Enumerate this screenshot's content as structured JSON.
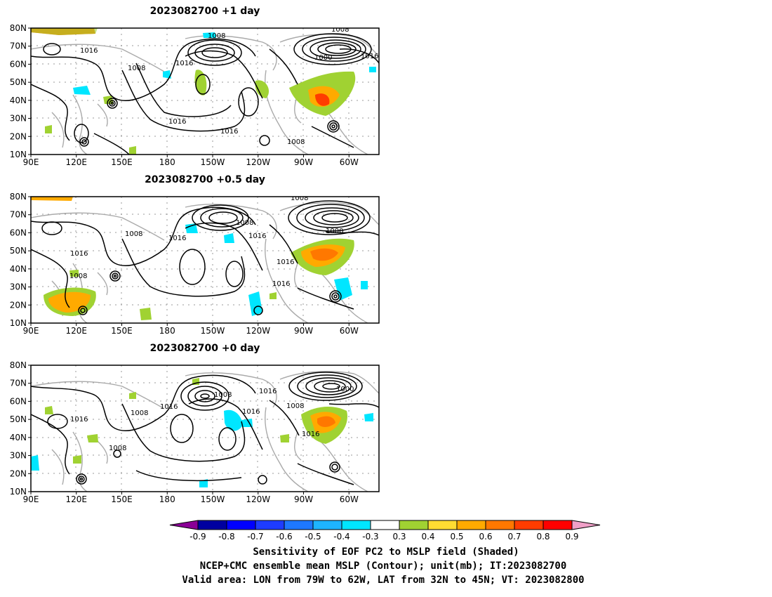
{
  "panels": [
    {
      "title": "2023082700  +1 day",
      "contour_labels": [
        "1008",
        "1016",
        "1008",
        "1016",
        "1016",
        "1016",
        "1000",
        "1008",
        "1016",
        "1008"
      ]
    },
    {
      "title": "2023082700  +0.5 day",
      "contour_labels": [
        "1008",
        "1008",
        "1016",
        "1016",
        "1008",
        "1016",
        "1000",
        "1016",
        "1016",
        "1008"
      ]
    },
    {
      "title": "2023082700  +0 day",
      "contour_labels": [
        "1016",
        "1008",
        "1016",
        "1008",
        "1016",
        "1008",
        "1000",
        "1016",
        "1016",
        "1008"
      ]
    }
  ],
  "axes": {
    "x_ticks": [
      "90E",
      "120E",
      "150E",
      "180",
      "150W",
      "120W",
      "90W",
      "60W"
    ],
    "y_ticks": [
      "80N",
      "70N",
      "60N",
      "50N",
      "40N",
      "30N",
      "20N",
      "10N"
    ]
  },
  "colorbar": {
    "labels": [
      "-0.9",
      "-0.8",
      "-0.7",
      "-0.6",
      "-0.5",
      "-0.4",
      "-0.3",
      "0.3",
      "0.4",
      "0.5",
      "0.6",
      "0.7",
      "0.8",
      "0.9"
    ],
    "colors": [
      "#8b0096",
      "#0000a0",
      "#0000ff",
      "#1e3cff",
      "#1e78ff",
      "#1eb4ff",
      "#00e6ff",
      "#ffffff",
      "#a0d232",
      "#ffdc32",
      "#ffaa00",
      "#ff7800",
      "#ff3c00",
      "#ff0000",
      "#f0a0c8"
    ]
  },
  "caption": {
    "line1": "Sensitivity of EOF PC2 to MSLP field (Shaded)",
    "line2": "NCEP+CMC ensemble mean MSLP (Contour); unit(mb); IT:2023082700",
    "line3": "Valid area: LON from 79W to 62W, LAT from 32N to 45N; VT: 2023082800"
  }
}
